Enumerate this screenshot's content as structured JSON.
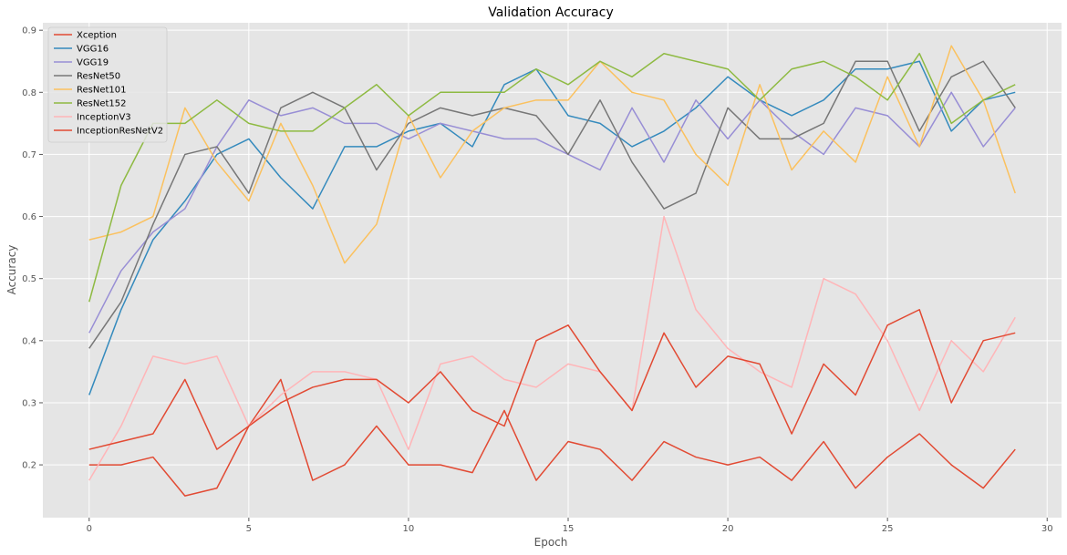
{
  "chart_data": {
    "type": "line",
    "title": "Validation Accuracy",
    "xlabel": "Epoch",
    "ylabel": "Accuracy",
    "xlim": [
      -1.45,
      30.45
    ],
    "ylim": [
      0.115,
      0.912
    ],
    "xticks": [
      0,
      5,
      10,
      15,
      20,
      25,
      30
    ],
    "yticks": [
      0.2,
      0.3,
      0.4,
      0.5,
      0.6,
      0.7,
      0.8,
      0.9
    ],
    "grid": true,
    "legend_position": "top-left",
    "x": [
      0,
      1,
      2,
      3,
      4,
      5,
      6,
      7,
      8,
      9,
      10,
      11,
      12,
      13,
      14,
      15,
      16,
      17,
      18,
      19,
      20,
      21,
      22,
      23,
      24,
      25,
      26,
      27,
      28,
      29
    ],
    "series": [
      {
        "name": "Xception",
        "color": "#E24A33",
        "values": [
          0.2,
          0.2,
          0.2125,
          0.15,
          0.1625,
          0.2625,
          0.3375,
          0.175,
          0.2,
          0.2625,
          0.2,
          0.2,
          0.1875,
          0.2875,
          0.175,
          0.2375,
          0.225,
          0.175,
          0.2375,
          0.2125,
          0.2,
          0.2125,
          0.175,
          0.2375,
          0.1625,
          0.2125,
          0.25,
          0.2,
          0.1625,
          0.225
        ]
      },
      {
        "name": "VGG16",
        "color": "#348ABD",
        "values": [
          0.3125,
          0.45,
          0.5625,
          0.625,
          0.7,
          0.725,
          0.6625,
          0.6125,
          0.7125,
          0.7125,
          0.7375,
          0.75,
          0.7125,
          0.8125,
          0.8375,
          0.7625,
          0.75,
          0.7125,
          0.7375,
          0.775,
          0.825,
          0.7875,
          0.7625,
          0.7875,
          0.8375,
          0.8375,
          0.85,
          0.7375,
          0.7875,
          0.8
        ]
      },
      {
        "name": "VGG19",
        "color": "#988ED5",
        "values": [
          0.4125,
          0.5125,
          0.575,
          0.6125,
          0.7125,
          0.7875,
          0.7625,
          0.775,
          0.75,
          0.75,
          0.725,
          0.75,
          0.7375,
          0.725,
          0.725,
          0.7,
          0.675,
          0.775,
          0.6875,
          0.7875,
          0.725,
          0.7875,
          0.7375,
          0.7,
          0.775,
          0.7625,
          0.7125,
          0.8,
          0.7125,
          0.775
        ]
      },
      {
        "name": "ResNet50",
        "color": "#777777",
        "values": [
          0.3875,
          0.4625,
          0.5875,
          0.7,
          0.7125,
          0.6375,
          0.775,
          0.8,
          0.775,
          0.675,
          0.75,
          0.775,
          0.7625,
          0.775,
          0.7625,
          0.7,
          0.7875,
          0.6875,
          0.6125,
          0.6375,
          0.775,
          0.725,
          0.725,
          0.75,
          0.85,
          0.85,
          0.7375,
          0.825,
          0.85,
          0.775
        ]
      },
      {
        "name": "ResNet101",
        "color": "#FBC15E",
        "values": [
          0.5625,
          0.575,
          0.6,
          0.775,
          0.6875,
          0.625,
          0.75,
          0.65,
          0.525,
          0.5875,
          0.7625,
          0.6625,
          0.7375,
          0.775,
          0.7875,
          0.7875,
          0.85,
          0.8,
          0.7875,
          0.7,
          0.65,
          0.8125,
          0.675,
          0.7375,
          0.6875,
          0.825,
          0.7125,
          0.875,
          0.7875,
          0.6375
        ]
      },
      {
        "name": "ResNet152",
        "color": "#8EBA42",
        "values": [
          0.4625,
          0.65,
          0.75,
          0.75,
          0.7875,
          0.75,
          0.7375,
          0.7375,
          0.775,
          0.8125,
          0.7625,
          0.8,
          0.8,
          0.8,
          0.8375,
          0.8125,
          0.85,
          0.825,
          0.8625,
          0.85,
          0.8375,
          0.7875,
          0.8375,
          0.85,
          0.825,
          0.7875,
          0.8625,
          0.75,
          0.7875,
          0.8125
        ]
      },
      {
        "name": "InceptionV3",
        "color": "#FFB5B8",
        "values": [
          0.175,
          0.2625,
          0.375,
          0.3625,
          0.375,
          0.2625,
          0.3125,
          0.35,
          0.35,
          0.3375,
          0.225,
          0.3625,
          0.375,
          0.3375,
          0.325,
          0.3625,
          0.35,
          0.2875,
          0.6,
          0.45,
          0.3875,
          0.35,
          0.325,
          0.5,
          0.475,
          0.4,
          0.2875,
          0.4,
          0.35,
          0.4375
        ]
      },
      {
        "name": "InceptionResNetV2",
        "color": "#E24A33",
        "values": [
          0.225,
          0.2375,
          0.25,
          0.3375,
          0.225,
          0.2625,
          0.3,
          0.325,
          0.3375,
          0.3375,
          0.3,
          0.35,
          0.2875,
          0.2625,
          0.4,
          0.425,
          0.35,
          0.2875,
          0.4125,
          0.325,
          0.375,
          0.3625,
          0.25,
          0.3625,
          0.3125,
          0.425,
          0.45,
          0.3,
          0.4,
          0.4125
        ]
      }
    ]
  }
}
